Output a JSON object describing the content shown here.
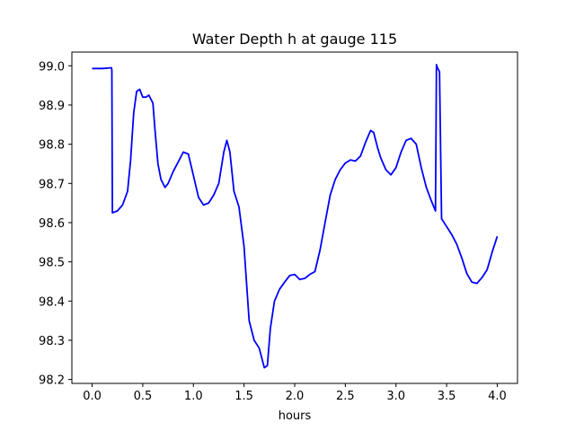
{
  "chart_data": {
    "type": "line",
    "title": "Water Depth h at gauge 115",
    "xlabel": "hours",
    "ylabel": "",
    "xlim": [
      -0.2,
      4.2
    ],
    "ylim": [
      98.19,
      99.035
    ],
    "x_ticks": [
      0.0,
      0.5,
      1.0,
      1.5,
      2.0,
      2.5,
      3.0,
      3.5,
      4.0
    ],
    "x_tick_labels": [
      "0.0",
      "0.5",
      "1.0",
      "1.5",
      "2.0",
      "2.5",
      "3.0",
      "3.5",
      "4.0"
    ],
    "y_ticks": [
      98.2,
      98.3,
      98.4,
      98.5,
      98.6,
      98.7,
      98.8,
      98.9,
      99.0
    ],
    "y_tick_labels": [
      "98.2",
      "98.3",
      "98.4",
      "98.5",
      "98.6",
      "98.7",
      "98.8",
      "98.9",
      "99.0"
    ],
    "grid": false,
    "series": [
      {
        "color": "#0000ff",
        "x": [
          0.0,
          0.1,
          0.19,
          0.195,
          0.2,
          0.25,
          0.3,
          0.35,
          0.38,
          0.41,
          0.44,
          0.47,
          0.5,
          0.53,
          0.56,
          0.6,
          0.62,
          0.65,
          0.68,
          0.72,
          0.75,
          0.8,
          0.85,
          0.9,
          0.95,
          1.0,
          1.05,
          1.1,
          1.15,
          1.2,
          1.25,
          1.3,
          1.33,
          1.36,
          1.4,
          1.45,
          1.5,
          1.55,
          1.6,
          1.65,
          1.7,
          1.73,
          1.76,
          1.8,
          1.85,
          1.9,
          1.95,
          2.0,
          2.05,
          2.1,
          2.15,
          2.2,
          2.25,
          2.3,
          2.35,
          2.4,
          2.45,
          2.5,
          2.55,
          2.6,
          2.65,
          2.7,
          2.75,
          2.78,
          2.82,
          2.85,
          2.9,
          2.95,
          3.0,
          3.05,
          3.1,
          3.15,
          3.2,
          3.25,
          3.3,
          3.35,
          3.39,
          3.4,
          3.41,
          3.43,
          3.45,
          3.5,
          3.55,
          3.6,
          3.65,
          3.7,
          3.75,
          3.8,
          3.85,
          3.9,
          3.95,
          4.0
        ],
        "y": [
          98.993,
          98.993,
          98.995,
          98.99,
          98.625,
          98.63,
          98.645,
          98.68,
          98.76,
          98.88,
          98.935,
          98.94,
          98.92,
          98.92,
          98.925,
          98.905,
          98.84,
          98.75,
          98.71,
          98.69,
          98.7,
          98.73,
          98.755,
          98.78,
          98.775,
          98.72,
          98.665,
          98.645,
          98.65,
          98.67,
          98.7,
          98.78,
          98.81,
          98.78,
          98.68,
          98.64,
          98.54,
          98.35,
          98.3,
          98.28,
          98.23,
          98.235,
          98.33,
          98.4,
          98.43,
          98.448,
          98.465,
          98.468,
          98.455,
          98.458,
          98.468,
          98.475,
          98.53,
          98.6,
          98.67,
          98.71,
          98.735,
          98.752,
          98.76,
          98.757,
          98.77,
          98.805,
          98.835,
          98.83,
          98.79,
          98.765,
          98.735,
          98.722,
          98.74,
          98.78,
          98.81,
          98.815,
          98.8,
          98.74,
          98.69,
          98.655,
          98.63,
          99.003,
          98.995,
          98.985,
          98.61,
          98.59,
          98.57,
          98.545,
          98.51,
          98.47,
          98.448,
          98.445,
          98.46,
          98.48,
          98.525,
          98.565
        ]
      }
    ]
  }
}
